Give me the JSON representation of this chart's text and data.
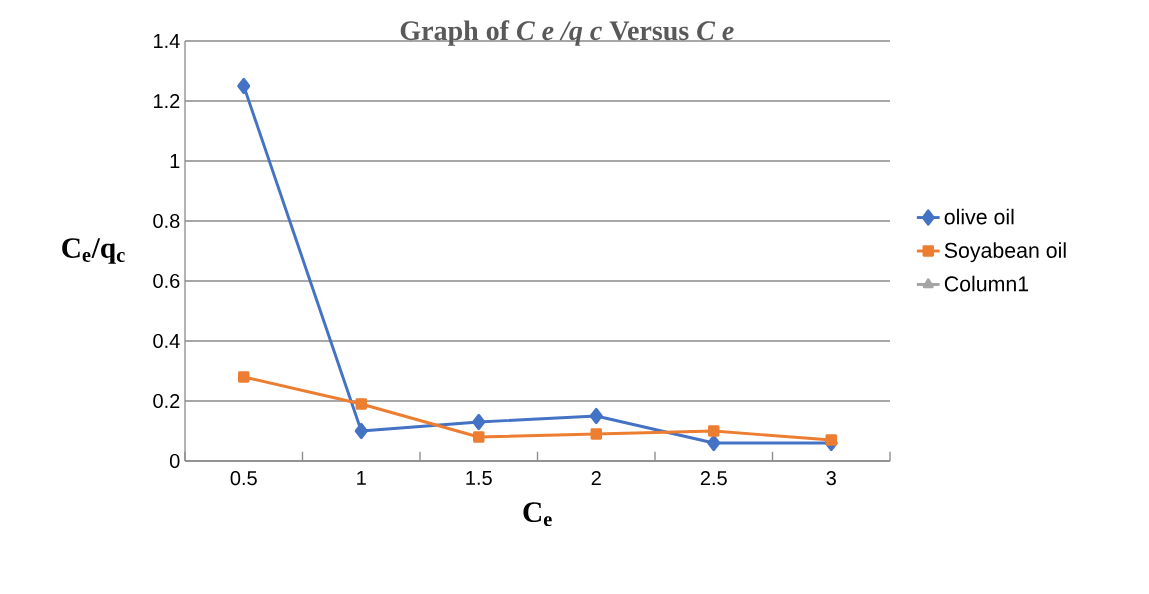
{
  "chart_data": {
    "type": "line",
    "title": "Graph of *C e /q c* Versus *C e*",
    "xlabel": "C$_{e}$",
    "ylabel": "C$_{e}$/q$_{c}$",
    "categories": [
      "0.5",
      "1",
      "1.5",
      "2",
      "2.5",
      "3"
    ],
    "series": [
      {
        "name": "olive oil",
        "color": "#4472c4",
        "marker": "diamond",
        "values": [
          1.25,
          0.1,
          0.13,
          0.15,
          0.06,
          0.06
        ]
      },
      {
        "name": "Soyabean oil",
        "color": "#ed7d31",
        "marker": "square",
        "values": [
          0.28,
          0.19,
          0.08,
          0.09,
          0.1,
          0.07
        ]
      },
      {
        "name": "Column1",
        "color": "#a5a5a5",
        "marker": "triangle",
        "values": [
          null,
          null,
          null,
          null,
          null,
          null
        ]
      }
    ],
    "ylim": [
      0,
      1.4
    ],
    "yticks": [
      0,
      0.2,
      0.4,
      0.6,
      0.8,
      1,
      1.2,
      1.4
    ],
    "grid": "y",
    "legend": "right"
  }
}
